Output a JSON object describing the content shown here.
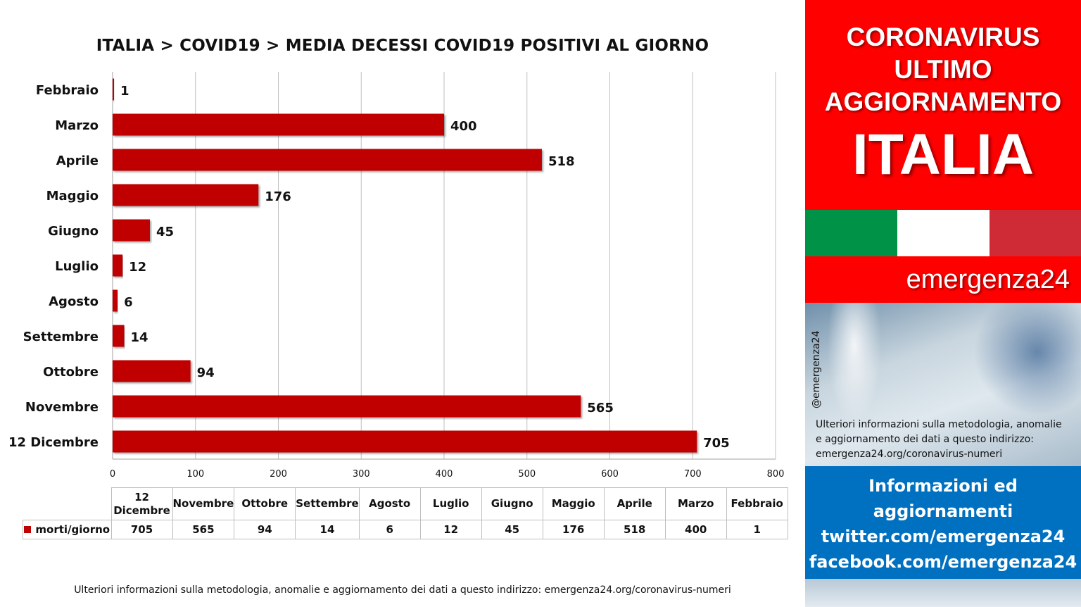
{
  "chart_data": {
    "type": "bar",
    "orientation": "horizontal",
    "title": "ITALIA >  COVID19 > MEDIA DECESSI COVID19 POSITIVI AL GIORNO",
    "categories": [
      "Febbraio",
      "Marzo",
      "Aprile",
      "Maggio",
      "Giugno",
      "Luglio",
      "Agosto",
      "Settembre",
      "Ottobre",
      "Novembre",
      "12 Dicembre"
    ],
    "series": [
      {
        "name": "morti/giorno",
        "values": [
          1,
          400,
          518,
          176,
          45,
          12,
          6,
          14,
          94,
          565,
          705
        ]
      }
    ],
    "xlim": [
      0,
      800
    ],
    "xticks": [
      0,
      100,
      200,
      300,
      400,
      500,
      600,
      700,
      800
    ],
    "grid": true,
    "bar_color": "#c00000",
    "data_table": {
      "columns": [
        "12 Dicembre",
        "Novembre",
        "Ottobre",
        "Settembre",
        "Agosto",
        "Luglio",
        "Giugno",
        "Maggio",
        "Aprile",
        "Marzo",
        "Febbraio"
      ],
      "values": [
        "705",
        "565",
        "94",
        "14",
        "6",
        "12",
        "45",
        "176",
        "518",
        "400",
        "1"
      ]
    }
  },
  "footer_note": "Ulteriori informazioni sulla metodologia, anomalie e aggiornamento dei dati a questo indirizzo: emergenza24.org/coronavirus-numeri",
  "sidebar": {
    "heading_lines": [
      "CORONAVIRUS",
      "ULTIMO",
      "AGGIORNAMENTO"
    ],
    "country": "ITALIA",
    "brand": "emergenza24",
    "handle": "@emergenza24",
    "info_lines": [
      "Ulteriori informazioni sulla metodologia, anomalie",
      "e aggiornamento dei dati a questo indirizzo:",
      "emergenza24.org/coronavirus-numeri"
    ],
    "links_lines": [
      "Informazioni ed",
      "aggiornamenti",
      "twitter.com/emergenza24",
      "facebook.com/emergenza24"
    ],
    "colors": {
      "red": "#ff0000",
      "blue": "#0070c0",
      "flag_green": "#009246",
      "flag_white": "#ffffff",
      "flag_red": "#ce2b37"
    }
  }
}
